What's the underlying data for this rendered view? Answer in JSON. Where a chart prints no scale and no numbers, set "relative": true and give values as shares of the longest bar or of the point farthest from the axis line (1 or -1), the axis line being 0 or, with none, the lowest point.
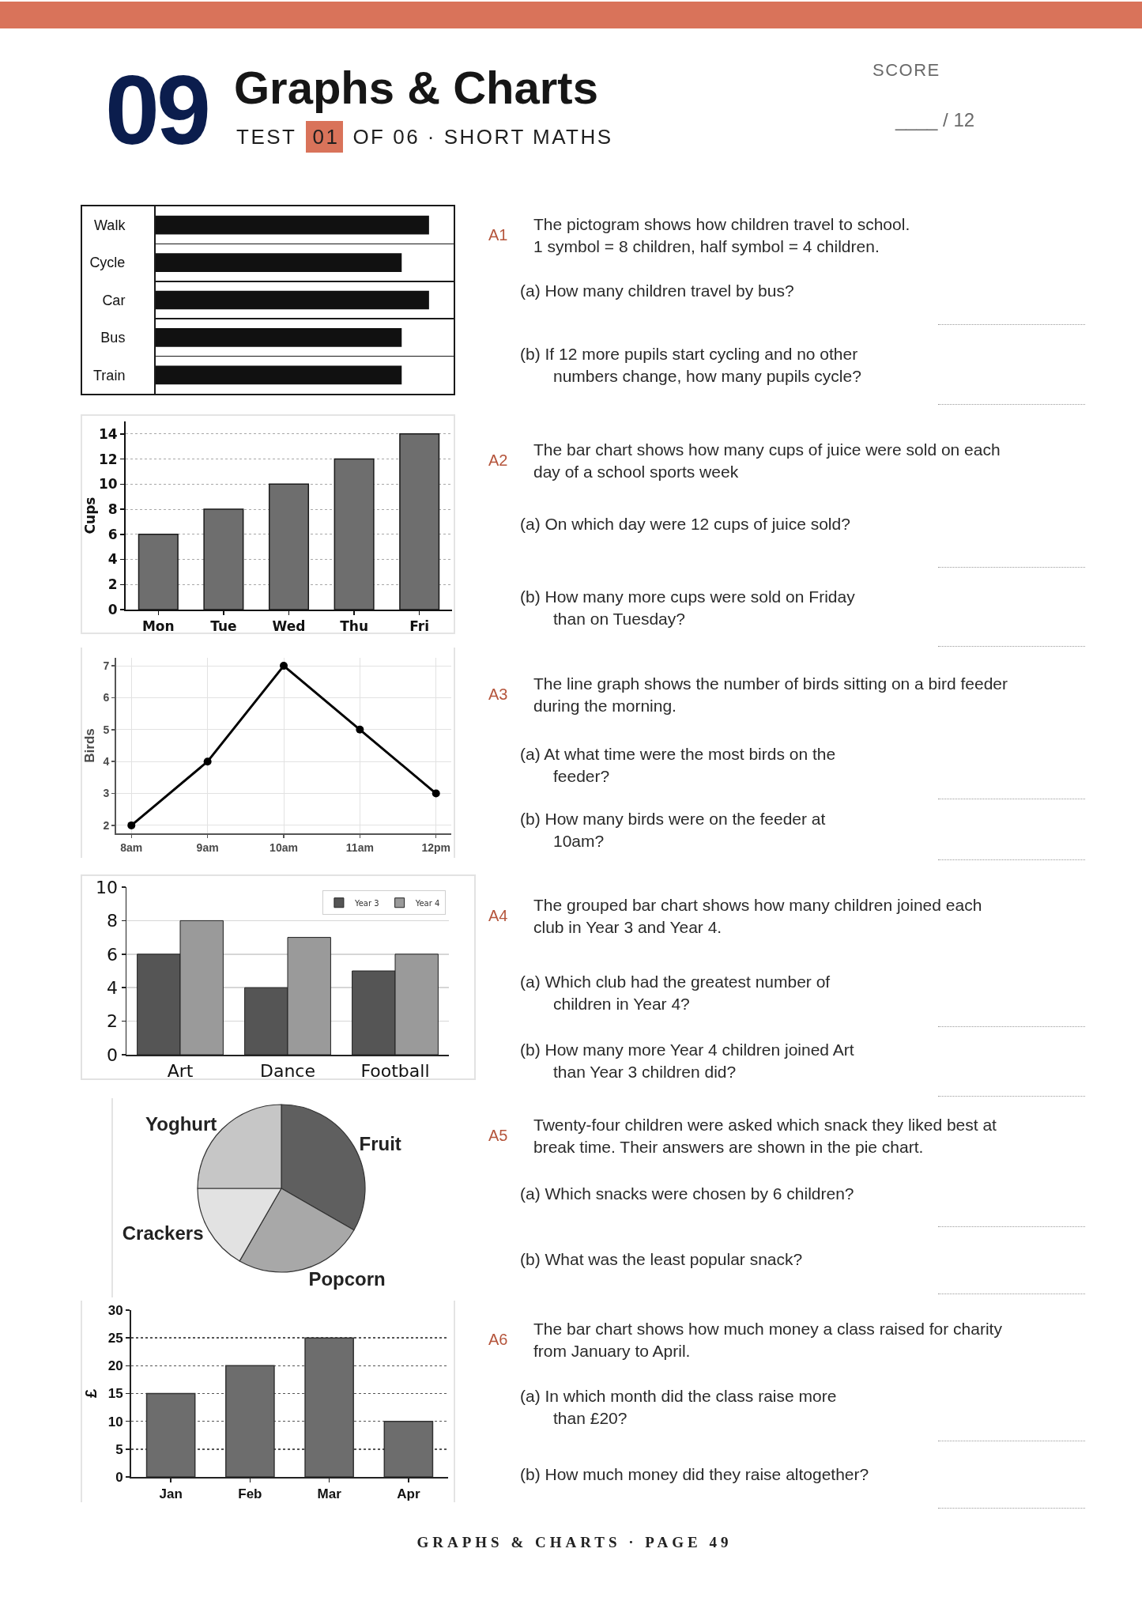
{
  "chart_data": [
    {
      "type": "other",
      "title": "Graphs & Charts",
      "annotations": [
        "09",
        "TEST",
        "01",
        "OF 06 · SHORT MATHS",
        "SCORE",
        "____ / 12"
      ]
    },
    {
      "type": "bar",
      "orientation": "horizontal",
      "relative": true,
      "categories": [
        "Walk",
        "Cycle",
        "Car",
        "Bus",
        "Train"
      ],
      "values": [
        1,
        0.9,
        1,
        0.9,
        0.9
      ],
      "color": "#111111",
      "grid": "y",
      "tick_labels": "y"
    },
    {
      "type": "other",
      "annotations": [
        "A1",
        "The pictogram shows how children travel to school.\n1 symbol = 8 children, half symbol = 4 children.",
        "(a) How many children travel by bus?",
        "(b) If 12 more pupils start cycling and no other\nnumbers change, how many pupils cycle?"
      ]
    },
    {
      "type": "bar",
      "categories": [
        "Mon",
        "Tue",
        "Wed",
        "Thu",
        "Fri"
      ],
      "values": [
        6,
        8,
        10,
        12,
        14
      ],
      "color": "#6e6e6e",
      "ylabel": "Cups",
      "ylim": [
        0,
        15
      ],
      "yticks": [
        0,
        2,
        4,
        6,
        8,
        10,
        12,
        14
      ],
      "grid": "y"
    },
    {
      "type": "other",
      "annotations": [
        "A2",
        "The bar chart shows how many cups of juice were sold on each\nday of a school sports week",
        "(a) On which day were 12 cups of juice sold?",
        "(b) How many more cups were sold on Friday\nthan on Tuesday?"
      ]
    },
    {
      "type": "line",
      "x": [
        8,
        9,
        10,
        11,
        12
      ],
      "values": [
        2,
        4,
        7,
        5,
        3
      ],
      "color": "#000000",
      "ylabel": "Birds",
      "xlim": [
        7.8,
        12.2
      ],
      "xticks": [
        {
          "value": 8,
          "label": "8am"
        },
        {
          "value": 9,
          "label": "9am"
        },
        {
          "value": 10,
          "label": "10am"
        },
        {
          "value": 11,
          "label": "11am"
        },
        {
          "value": 12,
          "label": "12pm"
        }
      ],
      "ylim": [
        1.75,
        7.25
      ],
      "yticks": [
        2,
        3,
        4,
        5,
        6,
        7
      ],
      "grid": true,
      "marker": "circle",
      "line_style": "solid"
    },
    {
      "type": "other",
      "annotations": [
        "A3",
        "The line graph shows the number of birds sitting on a bird feeder\nduring the morning.",
        "(a) At what time were the most birds on the\nfeeder?",
        "(b) How many birds were on the feeder at\n10am?"
      ]
    },
    {
      "type": "bar",
      "categories": [
        "Art",
        "Dance",
        "Football"
      ],
      "series": [
        {
          "name": "Year 3",
          "color": "#555555",
          "values": [
            6,
            4,
            5
          ]
        },
        {
          "name": "Year 4",
          "color": "#9a9a9a",
          "values": [
            8,
            7,
            6
          ]
        }
      ],
      "ylim": [
        0,
        10
      ],
      "yticks": [
        0,
        2,
        4,
        6,
        8,
        10
      ],
      "grid": "y",
      "legend": "top right"
    },
    {
      "type": "other",
      "annotations": [
        "A4",
        "The grouped bar chart shows how many children joined each\nclub in Year 3 and Year 4.",
        "(a) Which club had the greatest number of\nchildren in Year 4?",
        "(b) How many more Year 4 children joined Art\nthan Year 3 children did?"
      ]
    },
    {
      "type": "pie",
      "categories": [
        "Fruit",
        "Popcorn",
        "Crackers",
        "Yoghurt"
      ],
      "values": [
        33.3,
        25,
        16.7,
        25
      ],
      "colors": [
        "#5f5f5f",
        "#a8a8a8",
        "#e2e2e2",
        "#c6c6c6"
      ]
    },
    {
      "type": "other",
      "annotations": [
        "A5",
        "Twenty-four children were asked which snack they liked best at\nbreak time. Their answers are shown in the pie chart.",
        "(a) Which snacks were chosen by 6 children?",
        "(b) What was the least popular snack?"
      ]
    },
    {
      "type": "bar",
      "categories": [
        "Jan",
        "Feb",
        "Mar",
        "Apr"
      ],
      "values": [
        15,
        20,
        25,
        10
      ],
      "color": "#6d6d6d",
      "ylabel": "£",
      "ylim": [
        0,
        30
      ],
      "yticks": [
        0,
        5,
        10,
        15,
        20,
        25,
        30
      ],
      "grid": "y"
    },
    {
      "type": "other",
      "annotations": [
        "A6",
        "The bar chart shows how much money a class raised for charity\nfrom January to April.",
        "(a) In which month did the class raise more\nthan £20?",
        "(b) How much money did they raise altogether?"
      ]
    },
    {
      "type": "other",
      "annotations": [
        "GRAPHS & CHARTS · PAGE 49"
      ]
    }
  ]
}
